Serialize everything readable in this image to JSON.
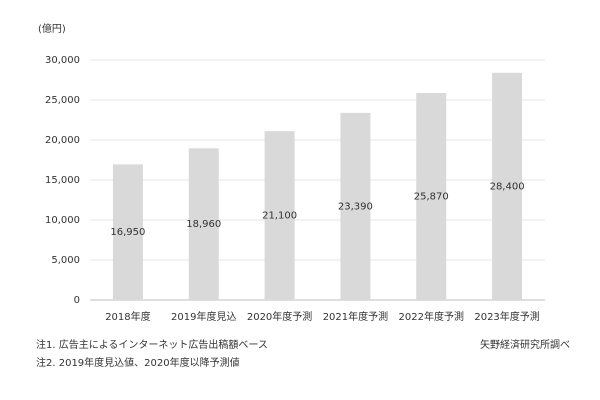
{
  "chart_data": {
    "type": "bar",
    "unit_label": "(億円)",
    "categories": [
      "2018年度",
      "2019年度見込",
      "2020年度予測",
      "2021年度予測",
      "2022年度予測",
      "2023年度予測"
    ],
    "values": [
      16950,
      18960,
      21100,
      23390,
      25870,
      28400
    ],
    "value_labels": [
      "16,950",
      "18,960",
      "21,100",
      "23,390",
      "25,870",
      "28,400"
    ],
    "color": "#d9d9d9",
    "ylim": [
      0,
      30000
    ],
    "yticks": [
      0,
      {
        "value": 5000,
        "label": "5,000"
      },
      {
        "value": 10000,
        "label": "10,000"
      },
      {
        "value": 15000,
        "label": "15,000"
      },
      {
        "value": 20000,
        "label": "20,000"
      },
      {
        "value": 25000,
        "label": "25,000"
      },
      {
        "value": 30000,
        "label": "30,000"
      }
    ],
    "grid": true,
    "notes": [
      "注1. 広告主によるインターネット広告出稿額ベース",
      "注2. 2019年度見込値、2020年度以降予測値"
    ],
    "source": "矢野経済研究所調べ"
  }
}
